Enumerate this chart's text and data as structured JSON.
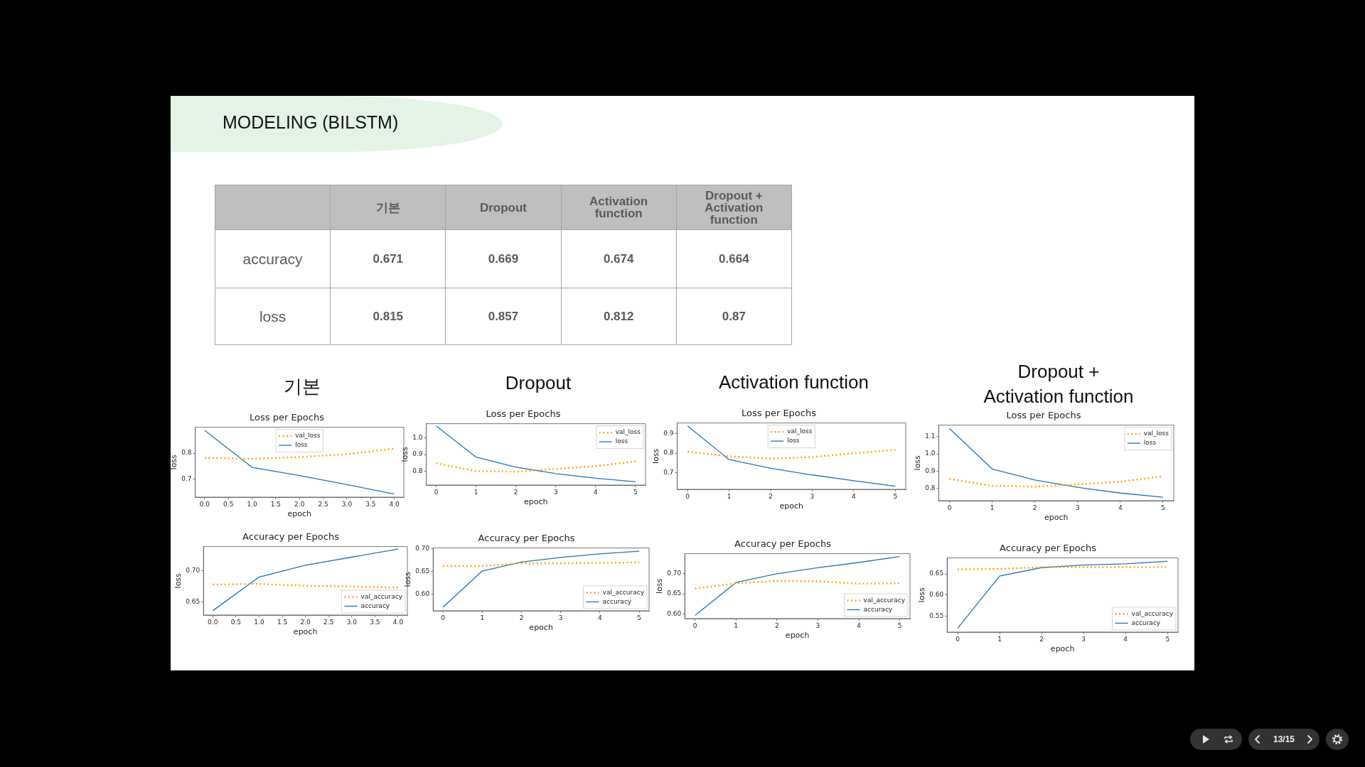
{
  "chart_data": [
    {
      "type": "other",
      "title": "MODELING (BILSTM)",
      "categories": [
        "기본",
        "Dropout",
        "Activation function",
        "Dropout + Activation function"
      ],
      "y_categories": [
        "accuracy",
        "loss"
      ],
      "cell_labels": [
        [
          "0.671",
          "0.669",
          "0.674",
          "0.664"
        ],
        [
          "0.815",
          "0.857",
          "0.812",
          "0.87"
        ]
      ],
      "annotations": [
        "13/15"
      ]
    },
    {
      "type": "line",
      "title": "기본",
      "subtitle": "Loss per Epochs",
      "xlabel": "epoch",
      "ylabel": "loss",
      "x": [
        0,
        1,
        2,
        3,
        4
      ],
      "series": [
        {
          "name": "val_loss",
          "color": "#ffa500",
          "line_style": "dotted",
          "values": [
            0.782,
            0.778,
            0.785,
            0.796,
            0.818
          ]
        },
        {
          "name": "loss",
          "color": "#1f77b4",
          "line_style": "solid",
          "values": [
            0.889,
            0.745,
            0.713,
            0.678,
            0.641
          ]
        }
      ],
      "xlim": [
        -0.2,
        4.2
      ],
      "xticks": [
        {
          "value": 0,
          "label": "0.0"
        },
        0.5,
        {
          "value": 1,
          "label": "1.0"
        },
        1.5,
        {
          "value": 2,
          "label": "2.0"
        },
        2.5,
        {
          "value": 3,
          "label": "3.0"
        },
        3.5,
        {
          "value": 4,
          "label": "4.0"
        }
      ],
      "ylim": [
        0.629,
        0.901
      ],
      "yticks": [
        0.7,
        0.8
      ],
      "legend": "top"
    },
    {
      "type": "line",
      "title": "Dropout",
      "subtitle": "Loss per Epochs",
      "xlabel": "epoch",
      "ylabel": "loss",
      "x": [
        0,
        1,
        2,
        3,
        4,
        5
      ],
      "series": [
        {
          "name": "val_loss",
          "color": "#ffa500",
          "line_style": "dotted",
          "values": [
            0.848,
            0.8,
            0.797,
            0.814,
            0.831,
            0.859
          ]
        },
        {
          "name": "loss",
          "color": "#1f77b4",
          "line_style": "solid",
          "values": [
            1.073,
            0.885,
            0.824,
            0.786,
            0.758,
            0.737
          ]
        }
      ],
      "xlim": [
        -0.25,
        5.25
      ],
      "xticks": [
        0,
        1,
        2,
        3,
        4,
        5
      ],
      "ylim": [
        0.717,
        1.086
      ],
      "yticks": [
        0.8,
        0.9,
        {
          "value": 1,
          "label": "1.0"
        }
      ],
      "legend": "top right"
    },
    {
      "type": "line",
      "title": "Activation function",
      "subtitle": "Loss per Epochs",
      "xlabel": "epoch",
      "ylabel": "loss",
      "x": [
        0,
        1,
        2,
        3,
        4,
        5
      ],
      "series": [
        {
          "name": "val_loss",
          "color": "#ffa500",
          "line_style": "dotted",
          "values": [
            0.807,
            0.784,
            0.772,
            0.78,
            0.799,
            0.816
          ]
        },
        {
          "name": "loss",
          "color": "#1f77b4",
          "line_style": "solid",
          "values": [
            0.938,
            0.767,
            0.723,
            0.689,
            0.66,
            0.632
          ]
        }
      ],
      "xlim": [
        -0.25,
        5.25
      ],
      "xticks": [
        0,
        1,
        2,
        3,
        4,
        5
      ],
      "ylim": [
        0.616,
        0.953
      ],
      "yticks": [
        0.7,
        0.8,
        0.9
      ],
      "legend": "top"
    },
    {
      "type": "line",
      "title": "Dropout + Activation function",
      "subtitle": "Loss per Epochs",
      "xlabel": "epoch",
      "ylabel": "loss",
      "x": [
        0,
        1,
        2,
        3,
        4,
        5
      ],
      "series": [
        {
          "name": "val_loss",
          "color": "#ffa500",
          "line_style": "dotted",
          "values": [
            0.856,
            0.815,
            0.811,
            0.824,
            0.84,
            0.871
          ]
        },
        {
          "name": "loss",
          "color": "#1f77b4",
          "line_style": "solid",
          "values": [
            1.146,
            0.913,
            0.849,
            0.807,
            0.774,
            0.75
          ]
        }
      ],
      "xlim": [
        -0.25,
        5.25
      ],
      "xticks": [
        0,
        1,
        2,
        3,
        4,
        5
      ],
      "ylim": [
        0.73,
        1.166
      ],
      "yticks": [
        0.8,
        0.9,
        {
          "value": 1,
          "label": "1.0"
        },
        1.1
      ],
      "legend": "top right"
    },
    {
      "type": "line",
      "title": "Accuracy per Epochs",
      "xlabel": "epoch",
      "ylabel": "loss",
      "x": [
        0,
        1,
        2,
        3,
        4
      ],
      "series": [
        {
          "name": "val_accuracy",
          "color": "#ffa500",
          "line_style": "dotted",
          "values": [
            0.678,
            0.679,
            0.676,
            0.675,
            0.673
          ]
        },
        {
          "name": "accuracy",
          "color": "#1f77b4",
          "line_style": "solid",
          "values": [
            0.636,
            0.69,
            0.709,
            0.722,
            0.735
          ]
        }
      ],
      "xlim": [
        -0.2,
        4.2
      ],
      "xticks": [
        {
          "value": 0,
          "label": "0.0"
        },
        0.5,
        {
          "value": 1,
          "label": "1.0"
        },
        1.5,
        {
          "value": 2,
          "label": "2.0"
        },
        2.5,
        {
          "value": 3,
          "label": "3.0"
        },
        3.5,
        {
          "value": 4,
          "label": "4.0"
        }
      ],
      "ylim": [
        0.629,
        0.739
      ],
      "yticks": [
        0.65,
        {
          "value": 0.7,
          "label": "0.70"
        }
      ],
      "legend": "bottom right"
    },
    {
      "type": "line",
      "title": "Accuracy per Epochs",
      "xlabel": "epoch",
      "ylabel": "loss",
      "x": [
        0,
        1,
        2,
        3,
        4,
        5
      ],
      "series": [
        {
          "name": "val_accuracy",
          "color": "#ffa500",
          "line_style": "dotted",
          "values": [
            0.662,
            0.662,
            0.668,
            0.668,
            0.669,
            0.67
          ]
        },
        {
          "name": "accuracy",
          "color": "#1f77b4",
          "line_style": "solid",
          "values": [
            0.571,
            0.651,
            0.671,
            0.681,
            0.689,
            0.695
          ]
        }
      ],
      "xlim": [
        -0.25,
        5.25
      ],
      "xticks": [
        0,
        1,
        2,
        3,
        4,
        5
      ],
      "ylim": [
        0.563,
        0.702
      ],
      "yticks": [
        {
          "value": 0.6,
          "label": "0.60"
        },
        0.65,
        {
          "value": 0.7,
          "label": "0.70"
        }
      ],
      "legend": "bottom right"
    },
    {
      "type": "line",
      "title": "Accuracy per Epochs",
      "xlabel": "epoch",
      "ylabel": "loss",
      "x": [
        0,
        1,
        2,
        3,
        4,
        5
      ],
      "series": [
        {
          "name": "val_accuracy",
          "color": "#ffa500",
          "line_style": "dotted",
          "values": [
            0.663,
            0.676,
            0.682,
            0.681,
            0.675,
            0.676
          ]
        },
        {
          "name": "accuracy",
          "color": "#1f77b4",
          "line_style": "solid",
          "values": [
            0.596,
            0.678,
            0.7,
            0.715,
            0.728,
            0.743
          ]
        }
      ],
      "xlim": [
        -0.25,
        5.25
      ],
      "xticks": [
        0,
        1,
        2,
        3,
        4,
        5
      ],
      "ylim": [
        0.588,
        0.75
      ],
      "yticks": [
        {
          "value": 0.6,
          "label": "0.60"
        },
        0.65,
        {
          "value": 0.7,
          "label": "0.70"
        }
      ],
      "legend": "bottom right"
    },
    {
      "type": "line",
      "title": "Accuracy per Epochs",
      "xlabel": "epoch",
      "ylabel": "loss",
      "x": [
        0,
        1,
        2,
        3,
        4,
        5
      ],
      "series": [
        {
          "name": "val_accuracy",
          "color": "#ffa500",
          "line_style": "dotted",
          "values": [
            0.661,
            0.662,
            0.666,
            0.666,
            0.666,
            0.666
          ]
        },
        {
          "name": "accuracy",
          "color": "#1f77b4",
          "line_style": "solid",
          "values": [
            0.521,
            0.645,
            0.665,
            0.671,
            0.674,
            0.68
          ]
        }
      ],
      "xlim": [
        -0.25,
        5.25
      ],
      "xticks": [
        0,
        1,
        2,
        3,
        4,
        5
      ],
      "ylim": [
        0.512,
        0.688
      ],
      "yticks": [
        0.55,
        {
          "value": 0.6,
          "label": "0.60"
        },
        0.65
      ],
      "legend": "bottom right"
    }
  ]
}
